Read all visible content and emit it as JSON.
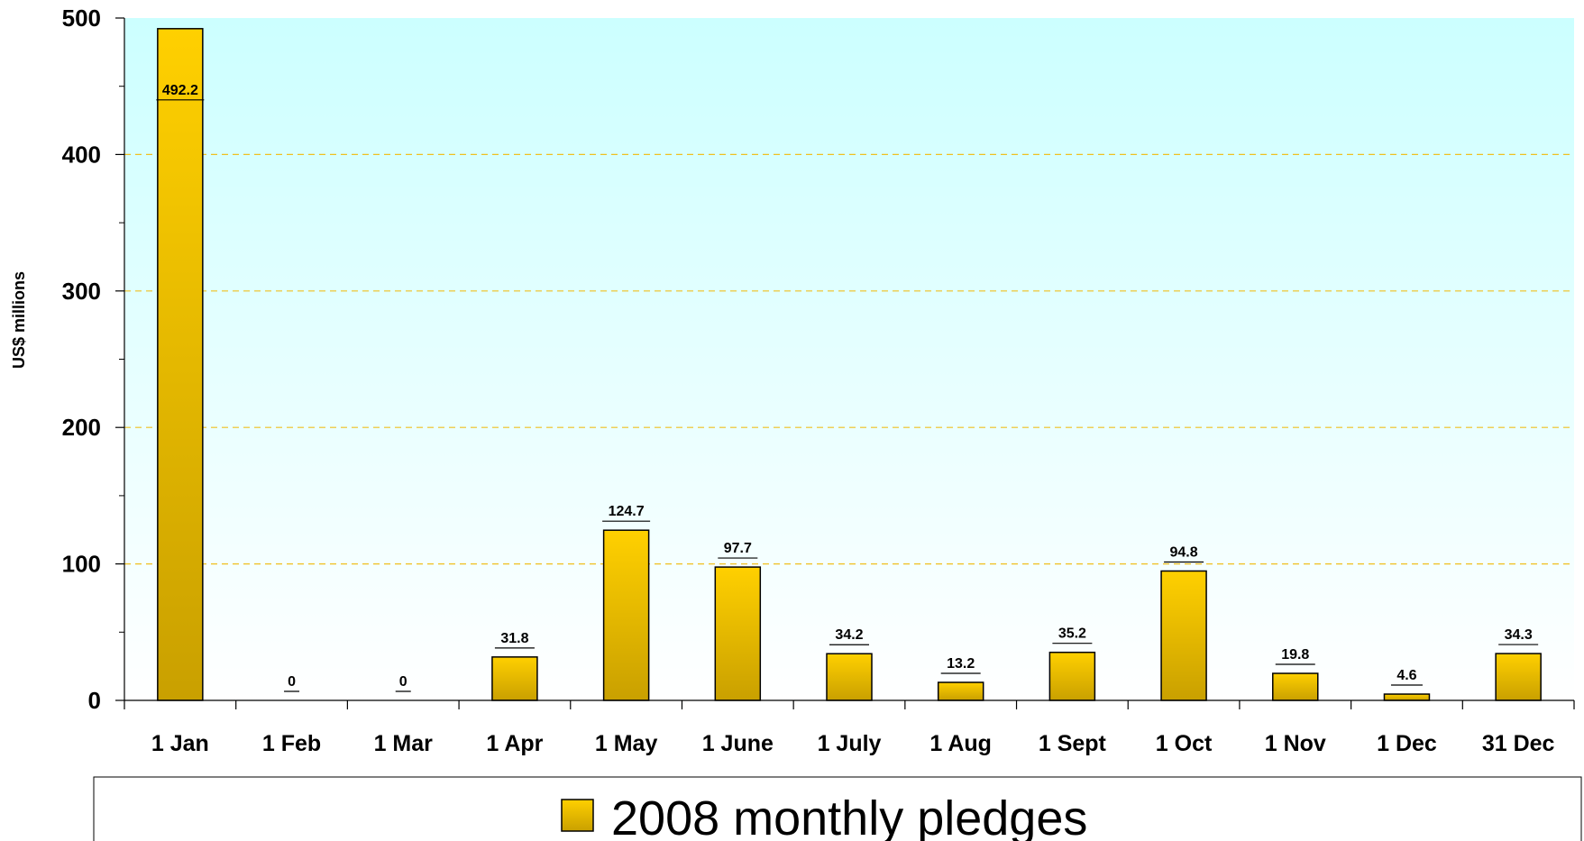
{
  "chart_data": {
    "type": "bar",
    "categories": [
      "1 Jan",
      "1 Feb",
      "1 Mar",
      "1 Apr",
      "1 May",
      "1 June",
      "1 July",
      "1 Aug",
      "1 Sept",
      "1 Oct",
      "1 Nov",
      "1 Dec",
      "31 Dec"
    ],
    "series": [
      {
        "name": "2008 monthly pledges",
        "values": [
          492.2,
          0,
          0,
          31.8,
          124.7,
          97.7,
          34.2,
          13.2,
          35.2,
          94.8,
          19.8,
          4.6,
          34.3
        ],
        "labels": [
          "492.2",
          "0",
          "0",
          "31.8",
          "124.7",
          "97.7",
          "34.2",
          "13.2",
          "35.2",
          "94.8",
          "19.8",
          "4.6",
          "34.3"
        ]
      }
    ],
    "ylabel": "US$ millions",
    "xlabel": "",
    "ylim": [
      0,
      500
    ],
    "yticks": [
      0,
      100,
      200,
      300,
      400,
      500
    ],
    "grid": true,
    "legend_position": "bottom",
    "colors": {
      "bar_top": "#ffd000",
      "bar_bottom": "#c9a000",
      "bar_stroke": "#000000",
      "plot_bg_top": "#ccffff",
      "plot_bg_bottom": "#ffffff",
      "grid": "#f0c020"
    }
  }
}
